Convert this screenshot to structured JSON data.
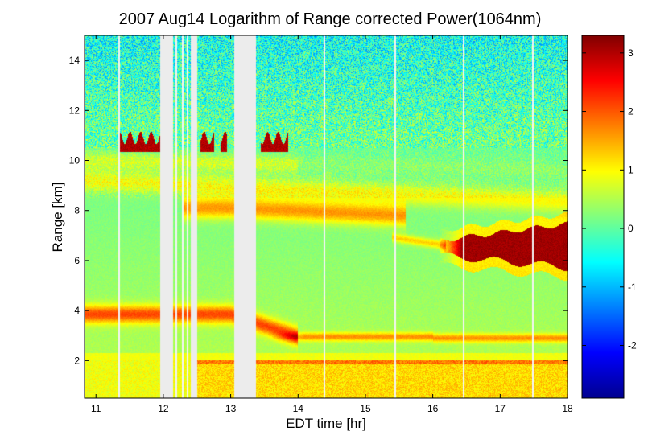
{
  "chart_data": {
    "type": "heatmap",
    "title": "2007 Aug14  Logarithm of Range corrected Power(1064nm)",
    "xlabel": "EDT time [hr]",
    "ylabel": "Range [km]",
    "xlim": [
      10.83,
      18.0
    ],
    "ylim": [
      0.5,
      15.0
    ],
    "x_ticks": [
      "11",
      "12",
      "13",
      "14",
      "15",
      "16",
      "17",
      "18"
    ],
    "y_ticks": [
      "2",
      "4",
      "6",
      "8",
      "10",
      "12",
      "14"
    ],
    "colorbar": {
      "range": [
        -2.9,
        3.3
      ],
      "colormap": "jet",
      "ticks": [
        "-2",
        "-1",
        "0",
        "1",
        "2",
        "3"
      ]
    },
    "data_gaps_hr": [
      [
        11.95,
        12.14
      ],
      [
        12.41,
        12.5
      ],
      [
        13.05,
        13.38
      ]
    ],
    "layers": [
      {
        "name": "boundary-layer",
        "range_km": [
          0.5,
          2.0
        ],
        "value": 1.3
      },
      {
        "name": "aerosol-layer-4km",
        "t_hr": [
          10.83,
          13.8
        ],
        "range_km": [
          3.4,
          4.2
        ],
        "value": 1.7
      },
      {
        "name": "aerosol-layer-3km",
        "t_hr": [
          13.8,
          18.0
        ],
        "range_km": [
          2.8,
          3.1
        ],
        "value": 1.2
      },
      {
        "name": "aerosol-layer-8km",
        "t_hr": [
          12.3,
          15.6
        ],
        "range_km": [
          7.6,
          8.3
        ],
        "value": 1.4
      },
      {
        "name": "aerosol-layer-9km",
        "t_hr": [
          10.83,
          18.0
        ],
        "range_km": [
          8.5,
          9.3
        ],
        "value": 1.0
      },
      {
        "name": "cirrus-10.6km",
        "t_hr": [
          11.3,
          13.9
        ],
        "range_km": [
          10.4,
          10.8
        ],
        "value": 3.0
      },
      {
        "name": "cloud-7km",
        "t_hr": [
          16.1,
          18.0
        ],
        "range_km": [
          5.7,
          7.4
        ],
        "value": 3.1
      }
    ]
  }
}
